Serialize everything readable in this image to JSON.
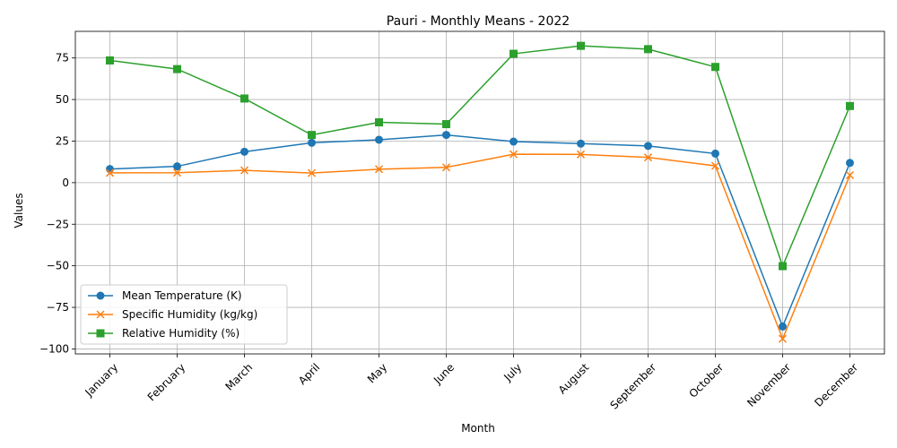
{
  "chart_data": {
    "type": "line",
    "title": "Pauri - Monthly Means - 2022",
    "xlabel": "Month",
    "ylabel": "Values",
    "categories": [
      "January",
      "February",
      "March",
      "April",
      "May",
      "June",
      "July",
      "August",
      "September",
      "October",
      "November",
      "December"
    ],
    "ylim": [
      -103,
      91
    ],
    "yticks": [
      -100,
      -75,
      -50,
      -25,
      0,
      25,
      50,
      75
    ],
    "grid": true,
    "legend_position": "lower-left",
    "series": [
      {
        "name": "Mean Temperature (K)",
        "color": "#1f77b4",
        "marker": "circle",
        "values": [
          8.2,
          9.8,
          18.6,
          24.0,
          25.8,
          28.7,
          24.7,
          23.5,
          22.1,
          17.5,
          -86.5,
          11.9
        ]
      },
      {
        "name": "Specific Humidity (kg/kg)",
        "color": "#ff7f0e",
        "marker": "x",
        "values": [
          5.9,
          6.0,
          7.4,
          5.8,
          8.1,
          9.2,
          17.1,
          17.0,
          15.2,
          10.1,
          -93.9,
          4.5
        ]
      },
      {
        "name": "Relative Humidity (%)",
        "color": "#2ca02c",
        "marker": "square",
        "values": [
          73.5,
          68.3,
          50.6,
          28.7,
          36.3,
          35.2,
          77.5,
          82.3,
          80.3,
          69.6,
          -50.2,
          46.1
        ]
      }
    ]
  }
}
